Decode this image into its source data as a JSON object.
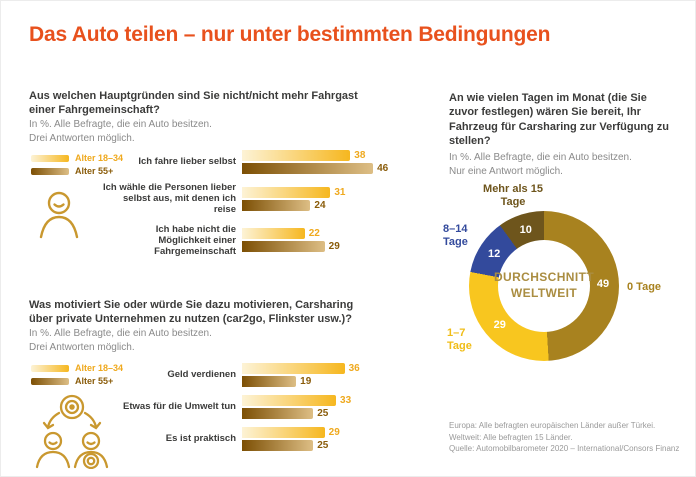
{
  "title": "Das Auto teilen – nur unter bestimmten Bedingungen",
  "colors": {
    "title_orange": "#e8511d",
    "gold": "#efa91e",
    "dark_brown": "#8a5c0a",
    "bar_young_gradient": [
      "#fdf3d6",
      "#f6b71f"
    ],
    "bar_old_gradient": [
      "#7c4f04",
      "#ddbe85"
    ],
    "donut_center_text": "#aa8d41"
  },
  "legend": {
    "young": "Alter 18–34",
    "old": "Alter 55+"
  },
  "chart_data": [
    {
      "type": "bar",
      "title": "Aus welchen Hauptgründen sind Sie nicht/nicht mehr Fahrgast einer Fahrgemeinschaft?",
      "note1": "In %. Alle Befragte, die ein Auto besitzen.",
      "note2": "Drei Antworten möglich.",
      "unit": "%",
      "categories": [
        "Ich fahre lieber selbst",
        "Ich wähle die Personen lieber selbst aus, mit denen ich reise",
        "Ich habe nicht die Möglichkeit einer Fahrgemeinschaft"
      ],
      "series": [
        {
          "name": "Alter 18–34",
          "values": [
            38,
            31,
            22
          ]
        },
        {
          "name": "Alter 55+",
          "values": [
            46,
            24,
            29
          ]
        }
      ],
      "xlim": [
        0,
        50
      ],
      "legend_position": "top-left",
      "grid": false
    },
    {
      "type": "bar",
      "title": "Was motiviert Sie oder würde Sie dazu motivieren, Carsharing über private Unternehmen zu nutzen (car2go, Flinkster usw.)?",
      "note1": "In %. Alle Befragte, die ein Auto besitzen.",
      "note2": "Drei Antworten möglich.",
      "unit": "%",
      "categories": [
        "Geld verdienen",
        "Etwas für die Umwelt tun",
        "Es ist praktisch"
      ],
      "series": [
        {
          "name": "Alter 18–34",
          "values": [
            36,
            33,
            29
          ]
        },
        {
          "name": "Alter 55+",
          "values": [
            19,
            25,
            25
          ]
        }
      ],
      "xlim": [
        0,
        50
      ],
      "legend_position": "top-left",
      "grid": false
    },
    {
      "type": "pie",
      "title": "An wie vielen Tagen im Monat (die Sie zuvor festlegen) wären Sie bereit, Ihr Fahrzeug für Carsharing zur Verfügung zu stellen?",
      "note1": "In %. Alle Befragte, die ein Auto besitzen.",
      "note2": "Nur eine Antwort möglich.",
      "unit": "%",
      "center_label_line1": "DURCHSCHNITT",
      "center_label_line2": "WELTWEIT",
      "segments": [
        {
          "label": "0 Tage",
          "value": 49,
          "color": "#a8821f",
          "label_color": "#a8821f"
        },
        {
          "label": "1–7 Tage",
          "value": 29,
          "color": "#f8c61f",
          "label_color": "#f0bd17"
        },
        {
          "label": "8–14 Tage",
          "value": 12,
          "color": "#334a9c",
          "label_color": "#334a9c"
        },
        {
          "label": "Mehr als 15 Tage",
          "value": 10,
          "color": "#6e551c",
          "label_color": "#6e551c"
        }
      ]
    }
  ],
  "footer": {
    "lines": [
      "Europa: Alle befragten europäischen Länder außer Türkei.",
      "Weltweit: Alle befragten 15 Länder.",
      "Quelle: Automobilbarometer 2020 – International/Consors Finanz"
    ]
  }
}
